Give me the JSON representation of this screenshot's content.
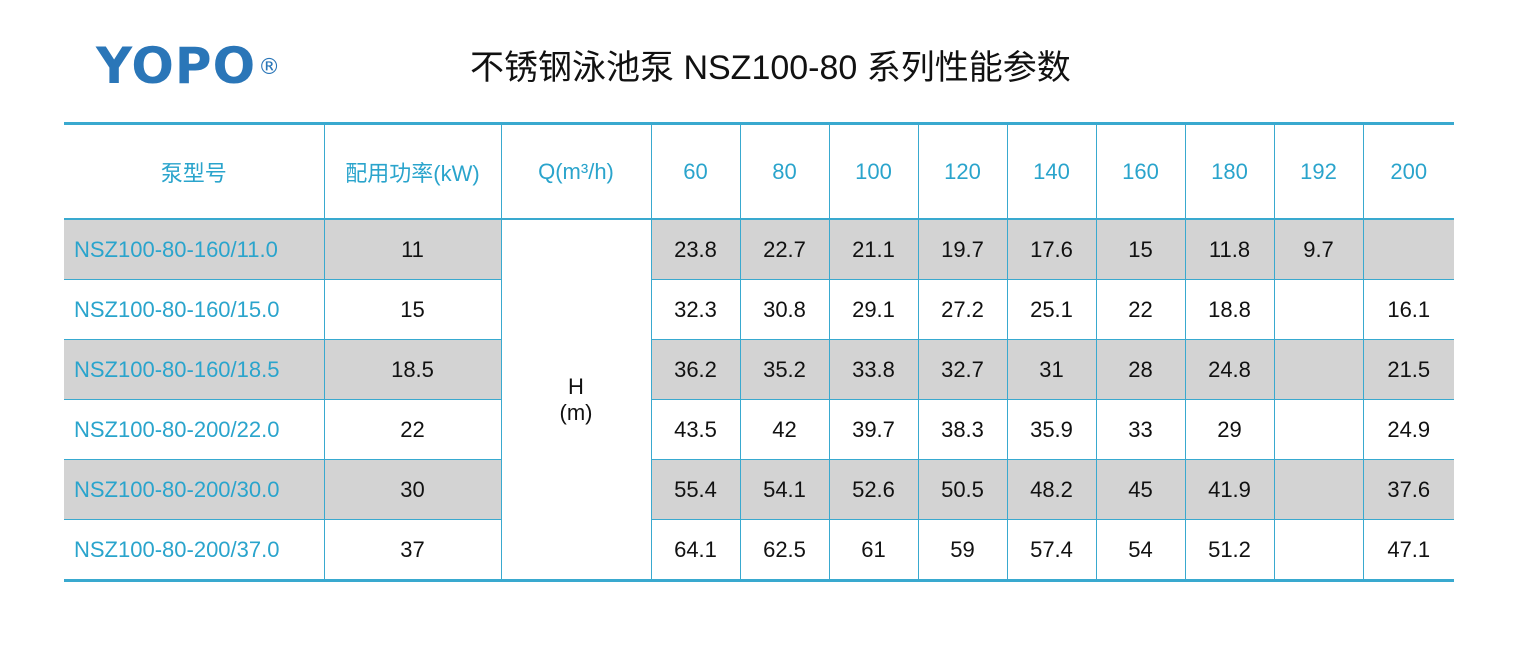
{
  "logo": {
    "text": "YOPO",
    "mark": "®"
  },
  "title": "不锈钢泳池泵 NSZ100-80 系列性能参数",
  "table": {
    "header": {
      "model": "泵型号",
      "power": "配用功率(kW)",
      "flow": "Q(m³/h)",
      "flows": [
        "60",
        "80",
        "100",
        "120",
        "140",
        "160",
        "180",
        "192",
        "200"
      ]
    },
    "head_label": {
      "line1": "H",
      "line2": "(m)"
    },
    "rows": [
      {
        "model": "NSZ100-80-160/11.0",
        "power": "11",
        "values": [
          "23.8",
          "22.7",
          "21.1",
          "19.7",
          "17.6",
          "15",
          "11.8",
          "9.7",
          ""
        ]
      },
      {
        "model": "NSZ100-80-160/15.0",
        "power": "15",
        "values": [
          "32.3",
          "30.8",
          "29.1",
          "27.2",
          "25.1",
          "22",
          "18.8",
          "",
          "16.1"
        ]
      },
      {
        "model": "NSZ100-80-160/18.5",
        "power": "18.5",
        "values": [
          "36.2",
          "35.2",
          "33.8",
          "32.7",
          "31",
          "28",
          "24.8",
          "",
          "21.5"
        ]
      },
      {
        "model": "NSZ100-80-200/22.0",
        "power": "22",
        "values": [
          "43.5",
          "42",
          "39.7",
          "38.3",
          "35.9",
          "33",
          "29",
          "",
          "24.9"
        ]
      },
      {
        "model": "NSZ100-80-200/30.0",
        "power": "30",
        "values": [
          "55.4",
          "54.1",
          "52.6",
          "50.5",
          "48.2",
          "45",
          "41.9",
          "",
          "37.6"
        ]
      },
      {
        "model": "NSZ100-80-200/37.0",
        "power": "37",
        "values": [
          "64.1",
          "62.5",
          "61",
          "59",
          "57.4",
          "54",
          "51.2",
          "",
          "47.1"
        ]
      }
    ]
  }
}
